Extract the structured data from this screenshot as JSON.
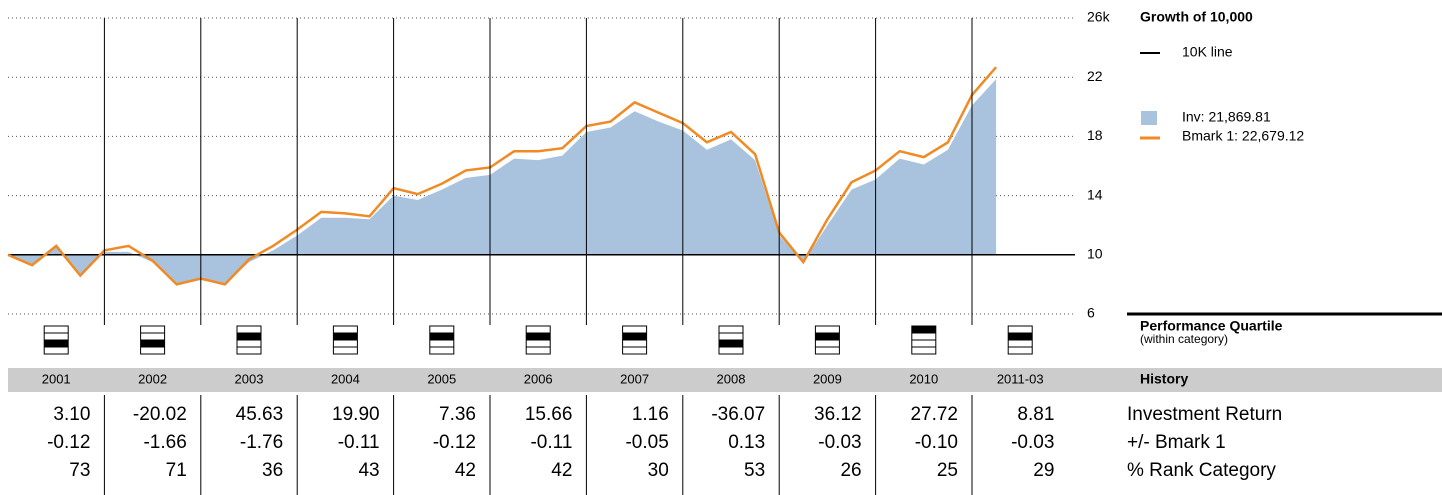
{
  "chart_data": {
    "type": "area",
    "title": "Growth of 10,000",
    "x": [
      "2000-12",
      "2001-03",
      "2001-06",
      "2001-09",
      "2001-12",
      "2002-03",
      "2002-06",
      "2002-09",
      "2002-12",
      "2003-03",
      "2003-06",
      "2003-09",
      "2003-12",
      "2004-03",
      "2004-06",
      "2004-09",
      "2004-12",
      "2005-03",
      "2005-06",
      "2005-09",
      "2005-12",
      "2006-03",
      "2006-06",
      "2006-09",
      "2006-12",
      "2007-03",
      "2007-06",
      "2007-09",
      "2007-12",
      "2008-03",
      "2008-06",
      "2008-09",
      "2008-12",
      "2009-03",
      "2009-06",
      "2009-09",
      "2009-12",
      "2010-03",
      "2010-06",
      "2010-09",
      "2010-12",
      "2011-03"
    ],
    "series": [
      {
        "name": "Inv: 21,869.81",
        "color": "#a9c3de",
        "values": [
          10,
          9.3,
          10.6,
          8.6,
          10.2,
          10.2,
          9.5,
          8.0,
          8.3,
          8.0,
          9.5,
          10.3,
          11.3,
          12.5,
          12.5,
          12.4,
          14.0,
          13.7,
          14.4,
          15.2,
          15.4,
          16.5,
          16.4,
          16.7,
          18.3,
          18.6,
          19.7,
          19.0,
          18.4,
          17.1,
          17.8,
          16.4,
          11.3,
          9.5,
          12.0,
          14.4,
          15.1,
          16.5,
          16.1,
          17.1,
          20.1,
          21.87
        ]
      },
      {
        "name": "Bmark 1: 22,679.12",
        "color": "#f08a24",
        "values": [
          10,
          9.3,
          10.6,
          8.6,
          10.3,
          10.6,
          9.6,
          8.0,
          8.4,
          8.0,
          9.7,
          10.6,
          11.7,
          12.9,
          12.8,
          12.6,
          14.5,
          14.1,
          14.8,
          15.7,
          15.9,
          17.0,
          17.0,
          17.2,
          18.7,
          19.0,
          20.3,
          19.6,
          18.9,
          17.6,
          18.3,
          16.8,
          11.5,
          9.5,
          12.4,
          14.9,
          15.7,
          17.0,
          16.6,
          17.6,
          20.8,
          22.68
        ]
      }
    ],
    "reference_line": {
      "name": "10K line",
      "value": 10,
      "color": "#000000"
    },
    "ylim": [
      6,
      26
    ],
    "yticks": [
      6,
      10,
      14,
      18,
      22,
      {
        "value": 26,
        "label": "26k"
      }
    ],
    "grid": true
  },
  "quartile": {
    "title": "Performance Quartile",
    "subtitle": "(within category)",
    "values": [
      3,
      3,
      2,
      2,
      2,
      2,
      2,
      3,
      2,
      1,
      2
    ]
  },
  "history": {
    "title": "History",
    "columns": [
      "2001",
      "2002",
      "2003",
      "2004",
      "2005",
      "2006",
      "2007",
      "2008",
      "2009",
      "2010",
      "2011-03"
    ],
    "rows": [
      {
        "label": "Investment Return",
        "values": [
          "3.10",
          "-20.02",
          "45.63",
          "19.90",
          "7.36",
          "15.66",
          "1.16",
          "-36.07",
          "36.12",
          "27.72",
          "8.81"
        ]
      },
      {
        "label": "+/- Bmark 1",
        "values": [
          "-0.12",
          "-1.66",
          "-1.76",
          "-0.11",
          "-0.12",
          "-0.11",
          "-0.05",
          "0.13",
          "-0.03",
          "-0.10",
          "-0.03"
        ]
      },
      {
        "label": "% Rank Category",
        "values": [
          "73",
          "71",
          "36",
          "43",
          "42",
          "42",
          "30",
          "53",
          "26",
          "25",
          "29"
        ]
      }
    ]
  }
}
